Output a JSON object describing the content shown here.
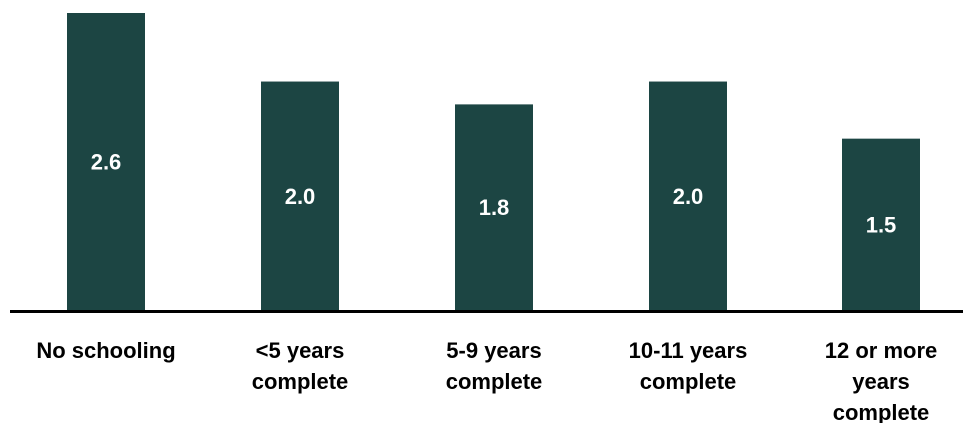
{
  "chart_data": {
    "type": "bar",
    "categories": [
      [
        "No schooling"
      ],
      [
        "<5 years",
        "complete"
      ],
      [
        "5-9 years",
        "complete"
      ],
      [
        "10-11 years",
        "complete"
      ],
      [
        "12 or more",
        "years",
        "complete"
      ]
    ],
    "values": [
      2.6,
      2.0,
      1.8,
      2.0,
      1.5
    ],
    "data_labels": [
      "2.6",
      "2.0",
      "1.8",
      "2.0",
      "1.5"
    ],
    "ylim": [
      0,
      2.6
    ],
    "bar_color": "#1c4543",
    "label_color": "#ffffff",
    "axis_color": "#000000",
    "grid": false,
    "legend": "none"
  }
}
